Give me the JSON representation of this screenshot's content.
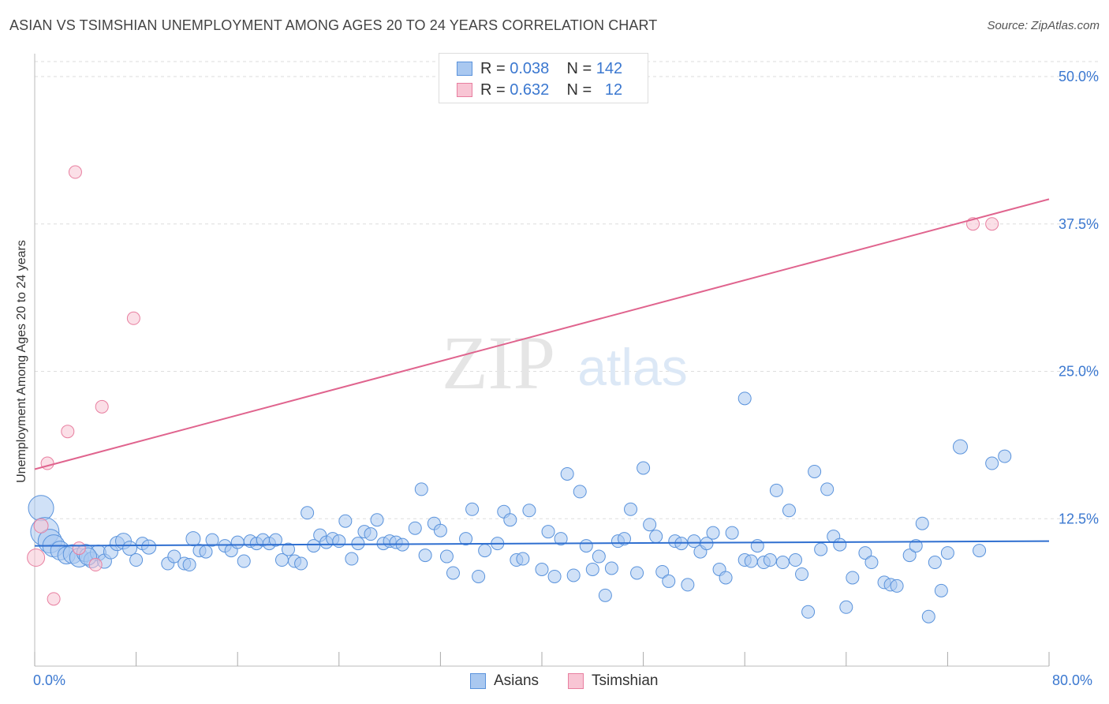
{
  "title": "ASIAN VS TSIMSHIAN UNEMPLOYMENT AMONG AGES 20 TO 24 YEARS CORRELATION CHART",
  "source": "Source: ZipAtlas.com",
  "watermark": {
    "zip": "ZIP",
    "atlas": "atlas"
  },
  "legend": {
    "rows": [
      {
        "r_label": "R =",
        "r_value": "0.038",
        "n_label": "N =",
        "n_value": "142",
        "color": "#a9c8f0",
        "border": "#5a93dc"
      },
      {
        "r_label": "R =",
        "r_value": "0.632",
        "n_label": "N =",
        "n_value": "12",
        "color": "#f8c5d4",
        "border": "#e87fa0"
      }
    ]
  },
  "bottom_legend": [
    {
      "label": "Asians",
      "color": "#a9c8f0",
      "border": "#5a93dc"
    },
    {
      "label": "Tsimshian",
      "color": "#f8c5d4",
      "border": "#e87fa0"
    }
  ],
  "chart_data": {
    "type": "scatter",
    "title": "ASIAN VS TSIMSHIAN UNEMPLOYMENT AMONG AGES 20 TO 24 YEARS CORRELATION CHART",
    "xlabel": "",
    "ylabel": "Unemployment Among Ages 20 to 24 years",
    "xlim": [
      0,
      80
    ],
    "ylim": [
      0,
      50
    ],
    "x_tick_labels": [
      "0.0%",
      "80.0%"
    ],
    "y_ticks": [
      12.5,
      25.0,
      37.5,
      50.0
    ],
    "y_tick_labels": [
      "12.5%",
      "25.0%",
      "37.5%",
      "50.0%"
    ],
    "grid": true,
    "series": [
      {
        "name": "Asians",
        "color": "#5a93dc",
        "fill": "#a9c8f0",
        "trend": {
          "x": [
            0,
            80
          ],
          "y": [
            10.2,
            10.6
          ]
        },
        "points": [
          [
            0.5,
            13.4,
            16
          ],
          [
            0.8,
            11.4,
            18
          ],
          [
            1.2,
            10.6,
            15
          ],
          [
            1.5,
            10.2,
            14
          ],
          [
            2.0,
            9.8,
            12
          ],
          [
            2.5,
            9.4,
            11
          ],
          [
            3.0,
            9.5,
            12
          ],
          [
            3.5,
            9.2,
            12
          ],
          [
            4.0,
            9.6,
            11
          ],
          [
            4.5,
            9.0,
            10
          ],
          [
            5.0,
            9.6,
            10
          ],
          [
            5.5,
            8.9,
            9
          ],
          [
            6.0,
            9.7,
            9
          ],
          [
            6.5,
            10.4,
            9
          ],
          [
            7.0,
            10.6,
            10
          ],
          [
            7.5,
            10.0,
            9
          ],
          [
            8.0,
            9.0,
            8
          ],
          [
            8.5,
            10.4,
            8
          ],
          [
            9.0,
            10.1,
            9
          ],
          [
            10.5,
            8.7,
            8
          ],
          [
            11.0,
            9.3,
            8
          ],
          [
            11.8,
            8.7,
            8
          ],
          [
            12.5,
            10.8,
            9
          ],
          [
            13.0,
            9.8,
            8
          ],
          [
            12.2,
            8.6,
            8
          ],
          [
            13.5,
            9.7,
            8
          ],
          [
            14.0,
            10.7,
            8
          ],
          [
            15.0,
            10.2,
            8
          ],
          [
            15.5,
            9.8,
            8
          ],
          [
            16.0,
            10.5,
            8
          ],
          [
            16.5,
            8.9,
            8
          ],
          [
            17.0,
            10.6,
            8
          ],
          [
            17.5,
            10.4,
            8
          ],
          [
            18.0,
            10.7,
            8
          ],
          [
            18.5,
            10.4,
            8
          ],
          [
            19.0,
            10.7,
            8
          ],
          [
            19.5,
            9.0,
            8
          ],
          [
            20.0,
            9.9,
            8
          ],
          [
            20.5,
            8.9,
            8
          ],
          [
            21.0,
            8.7,
            8
          ],
          [
            21.5,
            13.0,
            8
          ],
          [
            22.0,
            10.2,
            8
          ],
          [
            22.5,
            11.1,
            8
          ],
          [
            23.0,
            10.5,
            8
          ],
          [
            23.5,
            10.8,
            8
          ],
          [
            24.0,
            10.6,
            8
          ],
          [
            24.5,
            12.3,
            8
          ],
          [
            25.0,
            9.1,
            8
          ],
          [
            25.5,
            10.4,
            8
          ],
          [
            26.0,
            11.4,
            8
          ],
          [
            26.5,
            11.2,
            8
          ],
          [
            27.0,
            12.4,
            8
          ],
          [
            27.5,
            10.4,
            8
          ],
          [
            28.0,
            10.6,
            8
          ],
          [
            28.5,
            10.5,
            8
          ],
          [
            29.0,
            10.3,
            8
          ],
          [
            30.0,
            11.7,
            8
          ],
          [
            30.5,
            15.0,
            8
          ],
          [
            30.8,
            9.4,
            8
          ],
          [
            31.5,
            12.1,
            8
          ],
          [
            32.0,
            11.5,
            8
          ],
          [
            32.5,
            9.3,
            8
          ],
          [
            33.0,
            7.9,
            8
          ],
          [
            34.0,
            10.8,
            8
          ],
          [
            34.5,
            13.3,
            8
          ],
          [
            35.0,
            7.6,
            8
          ],
          [
            35.5,
            9.8,
            8
          ],
          [
            36.5,
            10.4,
            8
          ],
          [
            37.0,
            13.1,
            8
          ],
          [
            37.5,
            12.4,
            8
          ],
          [
            38.0,
            9.0,
            8
          ],
          [
            38.5,
            9.1,
            8
          ],
          [
            39.0,
            13.2,
            8
          ],
          [
            40.0,
            8.2,
            8
          ],
          [
            40.5,
            11.4,
            8
          ],
          [
            41.0,
            7.6,
            8
          ],
          [
            41.5,
            10.8,
            8
          ],
          [
            42.0,
            16.3,
            8
          ],
          [
            42.5,
            7.7,
            8
          ],
          [
            43.0,
            14.8,
            8
          ],
          [
            43.5,
            10.2,
            8
          ],
          [
            44.0,
            8.2,
            8
          ],
          [
            44.5,
            9.3,
            8
          ],
          [
            45.0,
            6.0,
            8
          ],
          [
            45.5,
            8.3,
            8
          ],
          [
            46.0,
            10.6,
            8
          ],
          [
            46.5,
            10.8,
            8
          ],
          [
            47.0,
            13.3,
            8
          ],
          [
            47.5,
            7.9,
            8
          ],
          [
            48.0,
            16.8,
            8
          ],
          [
            48.5,
            12.0,
            8
          ],
          [
            49.0,
            11.0,
            8
          ],
          [
            49.5,
            8.0,
            8
          ],
          [
            50.0,
            7.2,
            8
          ],
          [
            50.5,
            10.6,
            8
          ],
          [
            51.0,
            10.4,
            8
          ],
          [
            51.5,
            6.9,
            8
          ],
          [
            52.0,
            10.6,
            8
          ],
          [
            52.5,
            9.7,
            8
          ],
          [
            53.0,
            10.4,
            8
          ],
          [
            53.5,
            11.3,
            8
          ],
          [
            54.0,
            8.2,
            8
          ],
          [
            54.5,
            7.5,
            8
          ],
          [
            55.0,
            11.3,
            8
          ],
          [
            56.0,
            9.0,
            8
          ],
          [
            56.5,
            8.9,
            8
          ],
          [
            57.0,
            10.2,
            8
          ],
          [
            56.0,
            22.7,
            8
          ],
          [
            57.5,
            8.8,
            8
          ],
          [
            58.0,
            9.0,
            8
          ],
          [
            58.5,
            14.9,
            8
          ],
          [
            59.0,
            8.8,
            8
          ],
          [
            59.5,
            13.2,
            8
          ],
          [
            60.0,
            9.0,
            8
          ],
          [
            60.5,
            7.8,
            8
          ],
          [
            61.0,
            4.6,
            8
          ],
          [
            61.5,
            16.5,
            8
          ],
          [
            62.0,
            9.9,
            8
          ],
          [
            62.5,
            15.0,
            8
          ],
          [
            63.0,
            11.0,
            8
          ],
          [
            63.5,
            10.3,
            8
          ],
          [
            64.0,
            5.0,
            8
          ],
          [
            64.5,
            7.5,
            8
          ],
          [
            65.5,
            9.6,
            8
          ],
          [
            66.0,
            8.8,
            8
          ],
          [
            67.0,
            7.1,
            8
          ],
          [
            67.5,
            6.9,
            8
          ],
          [
            68.0,
            6.8,
            8
          ],
          [
            69.0,
            9.4,
            8
          ],
          [
            69.5,
            10.2,
            8
          ],
          [
            70.0,
            12.1,
            8
          ],
          [
            70.5,
            4.2,
            8
          ],
          [
            71.0,
            8.8,
            8
          ],
          [
            71.5,
            6.4,
            8
          ],
          [
            72.0,
            9.6,
            8
          ],
          [
            73.0,
            18.6,
            9
          ],
          [
            74.5,
            9.8,
            8
          ],
          [
            75.5,
            17.2,
            8
          ],
          [
            76.5,
            17.8,
            8
          ],
          [
            4.2,
            9.3,
            11
          ]
        ]
      },
      {
        "name": "Tsimshian",
        "color": "#e87fa0",
        "fill": "#f8c5d4",
        "trend": {
          "x": [
            0,
            80
          ],
          "y": [
            16.7,
            39.6
          ]
        },
        "points": [
          [
            0.1,
            9.2,
            11
          ],
          [
            0.5,
            11.9,
            9
          ],
          [
            1.0,
            17.2,
            8
          ],
          [
            1.5,
            5.7,
            8
          ],
          [
            2.6,
            19.9,
            8
          ],
          [
            3.2,
            41.9,
            8
          ],
          [
            3.5,
            10.0,
            8
          ],
          [
            4.8,
            8.6,
            8
          ],
          [
            5.3,
            22.0,
            8
          ],
          [
            7.8,
            29.5,
            8
          ],
          [
            74.0,
            37.5,
            8
          ],
          [
            75.5,
            37.5,
            8
          ]
        ]
      }
    ]
  }
}
